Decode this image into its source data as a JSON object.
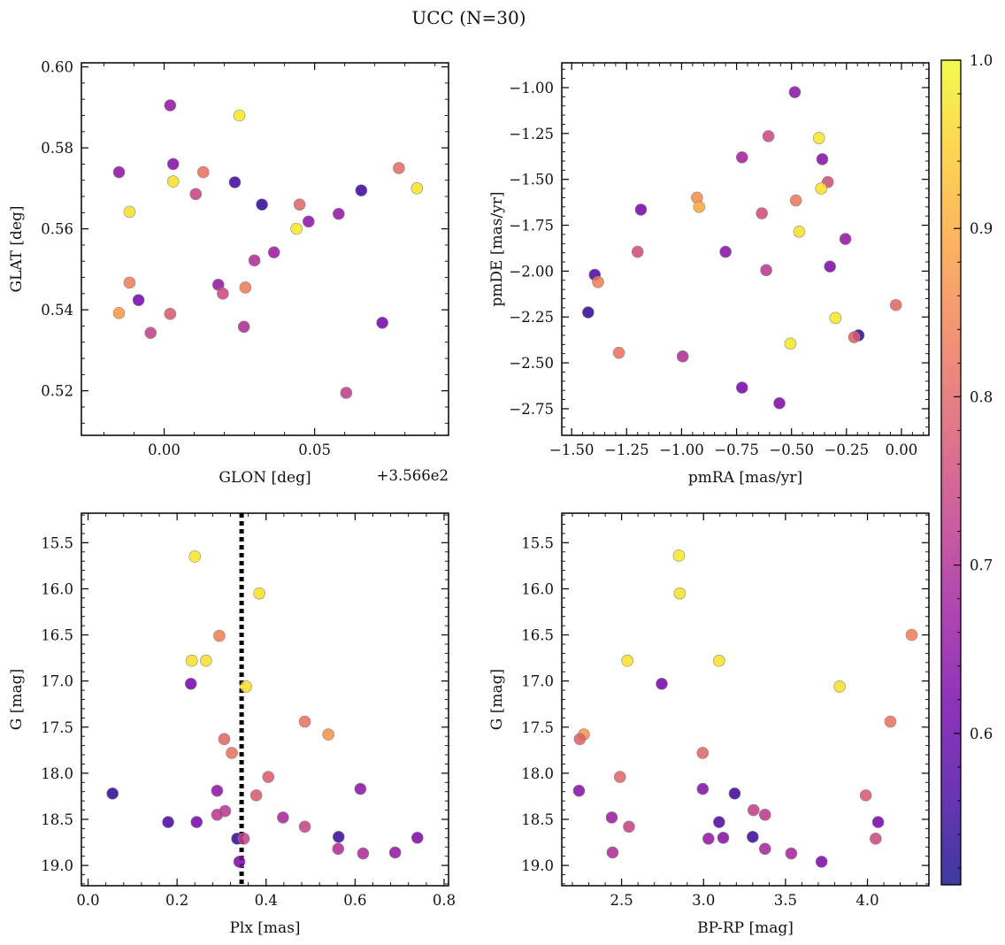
{
  "figure": {
    "title": "UCC (N=30)"
  },
  "colormap": {
    "name": "plasma",
    "range": [
      0.51,
      1.0
    ],
    "ticks": [
      1.0,
      0.9,
      0.8,
      0.7,
      0.6
    ],
    "tick_labels": [
      "1.0",
      "0.9",
      "0.8",
      "0.7",
      "0.6"
    ]
  },
  "chart_data": [
    {
      "type": "scatter",
      "panel": "top-left",
      "xlabel": "GLON [deg]",
      "ylabel": "GLAT [deg]",
      "offset_text": "+3.566e2",
      "xlim": [
        -0.0275,
        0.0945
      ],
      "ylim": [
        0.509,
        0.601
      ],
      "xticks": [
        0.0,
        0.05
      ],
      "xtick_labels": [
        "0.00",
        "0.05"
      ],
      "yticks": [
        0.52,
        0.54,
        0.56,
        0.58,
        0.6
      ],
      "ytick_labels": [
        "0.52",
        "0.54",
        "0.56",
        "0.58",
        "0.60"
      ],
      "points": [
        {
          "x": -0.015,
          "y": 0.574,
          "c": 0.65
        },
        {
          "x": 0.002,
          "y": 0.5905,
          "c": 0.66
        },
        {
          "x": 0.025,
          "y": 0.588,
          "c": 0.98
        },
        {
          "x": 0.003,
          "y": 0.576,
          "c": 0.64
        },
        {
          "x": 0.013,
          "y": 0.574,
          "c": 0.82
        },
        {
          "x": 0.003,
          "y": 0.5717,
          "c": 0.97
        },
        {
          "x": 0.0235,
          "y": 0.5715,
          "c": 0.56
        },
        {
          "x": 0.0105,
          "y": 0.5686,
          "c": 0.74
        },
        {
          "x": 0.0325,
          "y": 0.566,
          "c": 0.54
        },
        {
          "x": 0.078,
          "y": 0.575,
          "c": 0.81
        },
        {
          "x": 0.084,
          "y": 0.57,
          "c": 0.97
        },
        {
          "x": 0.0655,
          "y": 0.5695,
          "c": 0.55
        },
        {
          "x": 0.045,
          "y": 0.566,
          "c": 0.8
        },
        {
          "x": -0.0115,
          "y": 0.5642,
          "c": 0.97
        },
        {
          "x": 0.048,
          "y": 0.5618,
          "c": 0.65
        },
        {
          "x": 0.058,
          "y": 0.5637,
          "c": 0.66
        },
        {
          "x": 0.044,
          "y": 0.56,
          "c": 0.98
        },
        {
          "x": 0.0365,
          "y": 0.5542,
          "c": 0.67
        },
        {
          "x": 0.03,
          "y": 0.5522,
          "c": 0.7
        },
        {
          "x": -0.0115,
          "y": 0.5467,
          "c": 0.84
        },
        {
          "x": 0.018,
          "y": 0.5462,
          "c": 0.66
        },
        {
          "x": 0.027,
          "y": 0.5455,
          "c": 0.83
        },
        {
          "x": 0.0195,
          "y": 0.544,
          "c": 0.75
        },
        {
          "x": -0.0085,
          "y": 0.5424,
          "c": 0.62
        },
        {
          "x": -0.015,
          "y": 0.5392,
          "c": 0.88
        },
        {
          "x": 0.002,
          "y": 0.539,
          "c": 0.78
        },
        {
          "x": 0.0265,
          "y": 0.5358,
          "c": 0.7
        },
        {
          "x": -0.0045,
          "y": 0.5343,
          "c": 0.74
        },
        {
          "x": 0.0725,
          "y": 0.5368,
          "c": 0.62
        },
        {
          "x": 0.0605,
          "y": 0.5195,
          "c": 0.73
        }
      ]
    },
    {
      "type": "scatter",
      "panel": "top-right",
      "xlabel": "pmRA [mas/yr]",
      "ylabel": "pmDE [mas/yr]",
      "xlim": [
        -1.545,
        0.125
      ],
      "ylim": [
        -2.895,
        -0.865
      ],
      "xticks": [
        -1.5,
        -1.25,
        -1.0,
        -0.75,
        -0.5,
        -0.25,
        0.0
      ],
      "xtick_labels": [
        "−1.50",
        "−1.25",
        "−1.00",
        "−0.75",
        "−0.50",
        "−0.25",
        "0.00"
      ],
      "yticks": [
        -1.0,
        -1.25,
        -1.5,
        -1.75,
        -2.0,
        -2.25,
        -2.5,
        -2.75
      ],
      "ytick_labels": [
        "−1.00",
        "−1.25",
        "−1.50",
        "−1.75",
        "−2.00",
        "−2.25",
        "−2.50",
        "−2.75"
      ],
      "points": [
        {
          "x": -0.485,
          "y": -1.025,
          "c": 0.65
        },
        {
          "x": -0.605,
          "y": -1.265,
          "c": 0.75
        },
        {
          "x": -0.375,
          "y": -1.275,
          "c": 0.98
        },
        {
          "x": -0.725,
          "y": -1.38,
          "c": 0.68
        },
        {
          "x": -0.36,
          "y": -1.39,
          "c": 0.64
        },
        {
          "x": -0.335,
          "y": -1.515,
          "c": 0.76
        },
        {
          "x": -0.365,
          "y": -1.55,
          "c": 0.97
        },
        {
          "x": -0.93,
          "y": -1.6,
          "c": 0.86
        },
        {
          "x": -0.48,
          "y": -1.615,
          "c": 0.83
        },
        {
          "x": -0.92,
          "y": -1.65,
          "c": 0.9
        },
        {
          "x": -1.185,
          "y": -1.665,
          "c": 0.62
        },
        {
          "x": -0.635,
          "y": -1.685,
          "c": 0.76
        },
        {
          "x": -0.465,
          "y": -1.785,
          "c": 0.97
        },
        {
          "x": -0.255,
          "y": -1.825,
          "c": 0.66
        },
        {
          "x": -0.8,
          "y": -1.895,
          "c": 0.64
        },
        {
          "x": -1.2,
          "y": -1.895,
          "c": 0.76
        },
        {
          "x": -0.325,
          "y": -1.975,
          "c": 0.63
        },
        {
          "x": -0.615,
          "y": -1.995,
          "c": 0.72
        },
        {
          "x": -1.395,
          "y": -2.02,
          "c": 0.57
        },
        {
          "x": -1.38,
          "y": -2.06,
          "c": 0.84
        },
        {
          "x": -0.025,
          "y": -2.185,
          "c": 0.8
        },
        {
          "x": -1.425,
          "y": -2.225,
          "c": 0.54
        },
        {
          "x": -0.3,
          "y": -2.255,
          "c": 0.98
        },
        {
          "x": -0.195,
          "y": -2.35,
          "c": 0.54
        },
        {
          "x": -0.215,
          "y": -2.36,
          "c": 0.79
        },
        {
          "x": -0.505,
          "y": -2.395,
          "c": 0.98
        },
        {
          "x": -1.285,
          "y": -2.445,
          "c": 0.82
        },
        {
          "x": -0.995,
          "y": -2.465,
          "c": 0.7
        },
        {
          "x": -0.725,
          "y": -2.635,
          "c": 0.62
        },
        {
          "x": -0.555,
          "y": -2.72,
          "c": 0.63
        }
      ]
    },
    {
      "type": "scatter",
      "panel": "bottom-left",
      "xlabel": "Plx [mas]",
      "ylabel": "G [mag]",
      "xlim": [
        -0.015,
        0.81
      ],
      "ylim": [
        19.22,
        15.18
      ],
      "y_inverted": true,
      "vline_x": 0.345,
      "xticks": [
        0.0,
        0.2,
        0.4,
        0.6,
        0.8
      ],
      "xtick_labels": [
        "0.0",
        "0.2",
        "0.4",
        "0.6",
        "0.8"
      ],
      "yticks": [
        15.5,
        16.0,
        16.5,
        17.0,
        17.5,
        18.0,
        18.5,
        19.0
      ],
      "ytick_labels": [
        "15.5",
        "16.0",
        "16.5",
        "17.0",
        "17.5",
        "18.0",
        "18.5",
        "19.0"
      ],
      "points": [
        {
          "x": 0.24,
          "y": 15.65,
          "c": 0.98
        },
        {
          "x": 0.385,
          "y": 16.05,
          "c": 0.97
        },
        {
          "x": 0.295,
          "y": 16.51,
          "c": 0.84
        },
        {
          "x": 0.233,
          "y": 16.78,
          "c": 0.97
        },
        {
          "x": 0.265,
          "y": 16.78,
          "c": 0.97
        },
        {
          "x": 0.231,
          "y": 17.03,
          "c": 0.62
        },
        {
          "x": 0.355,
          "y": 17.06,
          "c": 0.97
        },
        {
          "x": 0.487,
          "y": 17.44,
          "c": 0.82
        },
        {
          "x": 0.54,
          "y": 17.58,
          "c": 0.87
        },
        {
          "x": 0.306,
          "y": 17.63,
          "c": 0.8
        },
        {
          "x": 0.323,
          "y": 17.78,
          "c": 0.82
        },
        {
          "x": 0.405,
          "y": 18.04,
          "c": 0.78
        },
        {
          "x": 0.055,
          "y": 18.22,
          "c": 0.54
        },
        {
          "x": 0.612,
          "y": 18.17,
          "c": 0.65
        },
        {
          "x": 0.29,
          "y": 18.19,
          "c": 0.65
        },
        {
          "x": 0.378,
          "y": 18.24,
          "c": 0.78
        },
        {
          "x": 0.308,
          "y": 18.41,
          "c": 0.72
        },
        {
          "x": 0.29,
          "y": 18.45,
          "c": 0.72
        },
        {
          "x": 0.438,
          "y": 18.48,
          "c": 0.69
        },
        {
          "x": 0.18,
          "y": 18.53,
          "c": 0.57
        },
        {
          "x": 0.244,
          "y": 18.53,
          "c": 0.62
        },
        {
          "x": 0.487,
          "y": 18.58,
          "c": 0.74
        },
        {
          "x": 0.335,
          "y": 18.71,
          "c": 0.54
        },
        {
          "x": 0.35,
          "y": 18.71,
          "c": 0.74
        },
        {
          "x": 0.563,
          "y": 18.69,
          "c": 0.55
        },
        {
          "x": 0.74,
          "y": 18.7,
          "c": 0.63
        },
        {
          "x": 0.562,
          "y": 18.82,
          "c": 0.7
        },
        {
          "x": 0.618,
          "y": 18.87,
          "c": 0.7
        },
        {
          "x": 0.69,
          "y": 18.86,
          "c": 0.66
        },
        {
          "x": 0.34,
          "y": 18.96,
          "c": 0.63
        }
      ]
    },
    {
      "type": "scatter",
      "panel": "bottom-right",
      "xlabel": "BP-RP [mag]",
      "ylabel": "G [mag]",
      "xlim": [
        2.135,
        4.375
      ],
      "ylim": [
        19.22,
        15.18
      ],
      "y_inverted": true,
      "xticks": [
        2.5,
        3.0,
        3.5,
        4.0
      ],
      "xtick_labels": [
        "2.5",
        "3.0",
        "3.5",
        "4.0"
      ],
      "yticks": [
        15.5,
        16.0,
        16.5,
        17.0,
        17.5,
        18.0,
        18.5,
        19.0
      ],
      "ytick_labels": [
        "15.5",
        "16.0",
        "16.5",
        "17.0",
        "17.5",
        "18.0",
        "18.5",
        "19.0"
      ],
      "points": [
        {
          "x": 2.85,
          "y": 15.64,
          "c": 0.98
        },
        {
          "x": 2.855,
          "y": 16.05,
          "c": 0.97
        },
        {
          "x": 4.27,
          "y": 16.5,
          "c": 0.84
        },
        {
          "x": 2.535,
          "y": 16.78,
          "c": 0.97
        },
        {
          "x": 3.095,
          "y": 16.78,
          "c": 0.97
        },
        {
          "x": 2.745,
          "y": 17.03,
          "c": 0.62
        },
        {
          "x": 3.83,
          "y": 17.06,
          "c": 0.97
        },
        {
          "x": 4.14,
          "y": 17.44,
          "c": 0.82
        },
        {
          "x": 2.27,
          "y": 17.58,
          "c": 0.87
        },
        {
          "x": 2.245,
          "y": 17.63,
          "c": 0.79
        },
        {
          "x": 2.995,
          "y": 17.78,
          "c": 0.8
        },
        {
          "x": 2.49,
          "y": 18.04,
          "c": 0.8
        },
        {
          "x": 2.24,
          "y": 18.19,
          "c": 0.64
        },
        {
          "x": 2.995,
          "y": 18.17,
          "c": 0.64
        },
        {
          "x": 3.19,
          "y": 18.22,
          "c": 0.55
        },
        {
          "x": 3.99,
          "y": 18.24,
          "c": 0.78
        },
        {
          "x": 3.305,
          "y": 18.4,
          "c": 0.73
        },
        {
          "x": 3.375,
          "y": 18.45,
          "c": 0.72
        },
        {
          "x": 2.44,
          "y": 18.48,
          "c": 0.67
        },
        {
          "x": 3.095,
          "y": 18.53,
          "c": 0.57
        },
        {
          "x": 4.065,
          "y": 18.53,
          "c": 0.62
        },
        {
          "x": 2.545,
          "y": 18.58,
          "c": 0.74
        },
        {
          "x": 3.03,
          "y": 18.71,
          "c": 0.66
        },
        {
          "x": 3.12,
          "y": 18.7,
          "c": 0.64
        },
        {
          "x": 3.3,
          "y": 18.69,
          "c": 0.55
        },
        {
          "x": 4.05,
          "y": 18.71,
          "c": 0.75
        },
        {
          "x": 3.375,
          "y": 18.82,
          "c": 0.69
        },
        {
          "x": 2.445,
          "y": 18.86,
          "c": 0.7
        },
        {
          "x": 3.535,
          "y": 18.87,
          "c": 0.69
        },
        {
          "x": 3.72,
          "y": 18.96,
          "c": 0.63
        }
      ]
    }
  ]
}
